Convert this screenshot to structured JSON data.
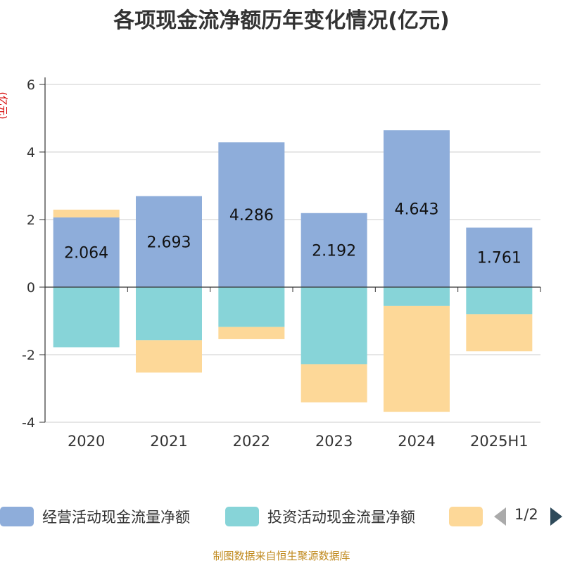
{
  "chart_data": {
    "type": "bar",
    "stacked": true,
    "title": "各项现金流净额历年变化情况(亿元)",
    "ylabel": "(亿元)",
    "categories": [
      "2020",
      "2021",
      "2022",
      "2023",
      "2024",
      "2025H1"
    ],
    "ylim": [
      -4,
      6
    ],
    "yticks": [
      6,
      4,
      2,
      0,
      -2,
      -4
    ],
    "grid": true,
    "series": [
      {
        "name": "经营活动现金流量净额",
        "color": "#8eadda",
        "values": [
          2.064,
          2.693,
          4.286,
          2.192,
          4.643,
          1.761
        ],
        "labels": [
          "2.064",
          "2.693",
          "4.286",
          "2.192",
          "4.643",
          "1.761"
        ]
      },
      {
        "name": "投资活动现金流量净额",
        "color": "#87d4d8",
        "values": [
          -1.78,
          -1.57,
          -1.18,
          -2.28,
          -0.56,
          -0.8
        ]
      },
      {
        "name": "",
        "color": "#fdd898",
        "values": [
          0.23,
          -0.96,
          -0.36,
          -1.13,
          -3.13,
          -1.1
        ]
      }
    ],
    "legend_position": "bottom"
  },
  "legend": {
    "items": [
      {
        "label": "经营活动现金流量净额",
        "color": "#8eadda"
      },
      {
        "label": "投资活动现金流量净额",
        "color": "#87d4d8"
      },
      {
        "label": "",
        "color": "#fdd898"
      }
    ],
    "page_text": "1/2"
  },
  "footer": {
    "source": "制图数据来自恒生聚源数据库"
  }
}
